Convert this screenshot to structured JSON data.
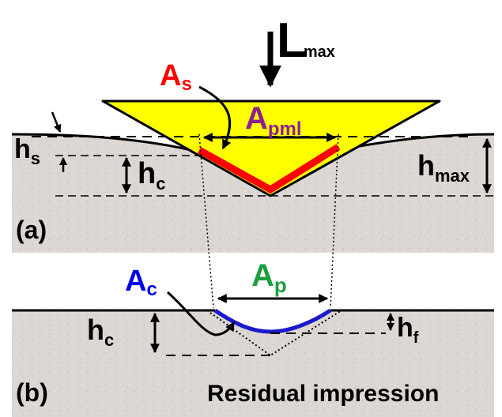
{
  "labels": {
    "lmax_main": "L",
    "lmax_sub": "max",
    "as_main": "A",
    "as_sub": "s",
    "apml_main": "A",
    "apml_sub": "pml",
    "hs_main": "h",
    "hs_sub": "s",
    "hc_top_main": "h",
    "hc_top_sub": "c",
    "hmax_main": "h",
    "hmax_sub": "max",
    "panel_a": "(a)",
    "ac_main": "A",
    "ac_sub": "c",
    "ap_main": "A",
    "ap_sub": "p",
    "hc_bot_main": "h",
    "hc_bot_sub": "c",
    "hf_main": "h",
    "hf_sub": "f",
    "panel_b": "(b)",
    "residual_caption": "Residual impression"
  },
  "colors": {
    "indenter_fill": "#ffff00",
    "contact_edge": "#ff0000",
    "as_label": "#ff0000",
    "apml_label": "#8e1f8e",
    "ac_label": "#0000ee",
    "residual_curve": "#1a1acc",
    "ap_label": "#1e9e3e",
    "specimen_fill": "#dcd7d2",
    "ink": "#000000"
  }
}
